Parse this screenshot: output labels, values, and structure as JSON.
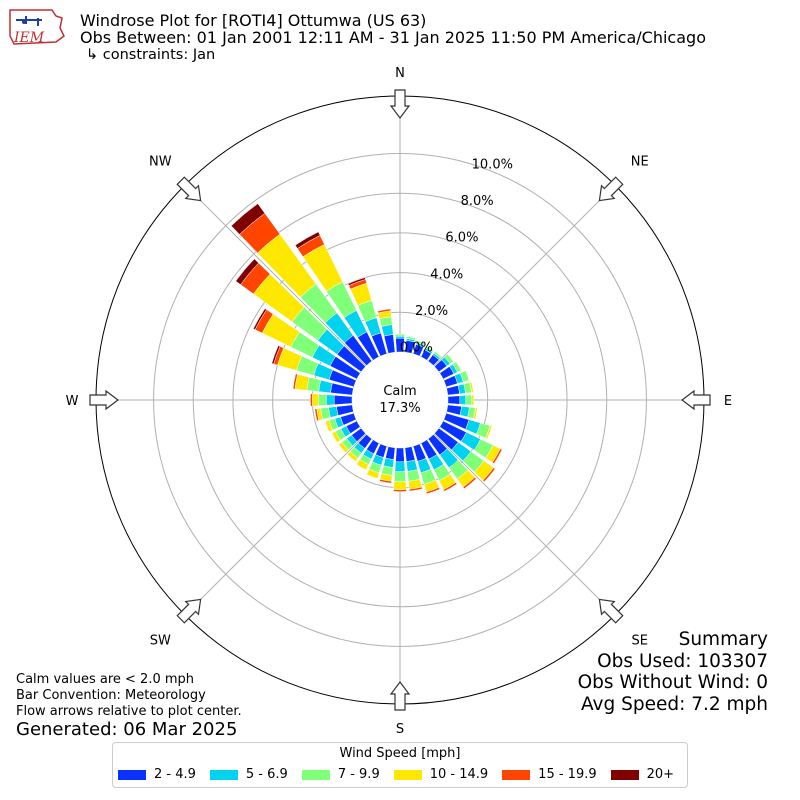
{
  "header": {
    "title_line1": "Windrose Plot for [ROTI4] Ottumwa (US 63)",
    "title_line2": "Obs Between: 01 Jan 2001 12:11 AM - 31 Jan 2025 11:50 PM America/Chicago",
    "title_line3": "↳ constraints: Jan",
    "logo_text": "IEM"
  },
  "notes": {
    "calm_note": "Calm values are < 2.0 mph",
    "bar_convention": "Bar Convention: Meteorology",
    "flow_arrows": "Flow arrows relative to plot center.",
    "generated": "Generated: 06 Mar 2025"
  },
  "summary": {
    "title": "Summary",
    "obs_used": "Obs Used: 103307",
    "obs_without_wind": "Obs Without Wind: 0",
    "avg_speed": "Avg Speed: 7.2 mph"
  },
  "center": {
    "label": "Calm",
    "value": "17.3%"
  },
  "legend": {
    "title": "Wind Speed [mph]",
    "items": [
      {
        "label": "2 - 4.9",
        "color": "#0a32ff"
      },
      {
        "label": "5 - 6.9",
        "color": "#00d2f0"
      },
      {
        "label": "7 - 9.9",
        "color": "#80ff78"
      },
      {
        "label": "10 - 14.9",
        "color": "#ffe800"
      },
      {
        "label": "15 - 19.9",
        "color": "#ff4500"
      },
      {
        "label": "20+",
        "color": "#800000"
      }
    ]
  },
  "chart_data": {
    "type": "windrose",
    "calm_percent": 17.3,
    "radial_ticks": [
      0,
      2,
      4,
      6,
      8,
      10
    ],
    "radial_tick_labels": [
      "0.0%",
      "2.0%",
      "4.0%",
      "6.0%",
      "8.0%",
      "10.0%"
    ],
    "rmax": 12.9,
    "compass_labels": [
      "N",
      "NE",
      "E",
      "SE",
      "S",
      "SW",
      "W",
      "NW"
    ],
    "series": [
      {
        "name": "2 - 4.9",
        "color": "#0a32ff"
      },
      {
        "name": "5 - 6.9",
        "color": "#00d2f0"
      },
      {
        "name": "7 - 9.9",
        "color": "#80ff78"
      },
      {
        "name": "10 - 14.9",
        "color": "#ffe800"
      },
      {
        "name": "15 - 19.9",
        "color": "#ff4500"
      },
      {
        "name": "20+",
        "color": "#800000"
      }
    ],
    "directions": [
      {
        "deg": 0,
        "values": [
          0.7,
          0.1,
          0.1,
          0.0,
          0.0,
          0.0
        ]
      },
      {
        "deg": 10,
        "values": [
          0.6,
          0.1,
          0.1,
          0.0,
          0.0,
          0.0
        ]
      },
      {
        "deg": 20,
        "values": [
          0.5,
          0.1,
          0.1,
          0.0,
          0.0,
          0.0
        ]
      },
      {
        "deg": 30,
        "values": [
          0.4,
          0.1,
          0.1,
          0.0,
          0.0,
          0.0
        ]
      },
      {
        "deg": 40,
        "values": [
          0.4,
          0.1,
          0.1,
          0.0,
          0.0,
          0.0
        ]
      },
      {
        "deg": 50,
        "values": [
          0.5,
          0.2,
          0.2,
          0.0,
          0.0,
          0.0
        ]
      },
      {
        "deg": 60,
        "values": [
          0.6,
          0.2,
          0.2,
          0.0,
          0.0,
          0.0
        ]
      },
      {
        "deg": 70,
        "values": [
          0.6,
          0.3,
          0.3,
          0.0,
          0.0,
          0.0
        ]
      },
      {
        "deg": 80,
        "values": [
          0.6,
          0.3,
          0.3,
          0.1,
          0.0,
          0.0
        ]
      },
      {
        "deg": 90,
        "values": [
          0.6,
          0.3,
          0.3,
          0.1,
          0.0,
          0.0
        ]
      },
      {
        "deg": 100,
        "values": [
          0.7,
          0.4,
          0.3,
          0.1,
          0.0,
          0.0
        ]
      },
      {
        "deg": 110,
        "values": [
          1.2,
          0.6,
          0.5,
          0.1,
          0.0,
          0.0
        ]
      },
      {
        "deg": 120,
        "values": [
          1.3,
          0.8,
          0.7,
          0.4,
          0.1,
          0.0
        ]
      },
      {
        "deg": 130,
        "values": [
          1.2,
          0.8,
          0.8,
          0.6,
          0.1,
          0.0
        ]
      },
      {
        "deg": 140,
        "values": [
          1.0,
          0.8,
          0.7,
          0.5,
          0.1,
          0.0
        ]
      },
      {
        "deg": 150,
        "values": [
          0.9,
          0.6,
          0.6,
          0.5,
          0.1,
          0.0
        ]
      },
      {
        "deg": 160,
        "values": [
          0.8,
          0.6,
          0.6,
          0.4,
          0.1,
          0.0
        ]
      },
      {
        "deg": 170,
        "values": [
          0.7,
          0.5,
          0.5,
          0.4,
          0.1,
          0.0
        ]
      },
      {
        "deg": 180,
        "values": [
          0.7,
          0.5,
          0.5,
          0.4,
          0.1,
          0.0
        ]
      },
      {
        "deg": 190,
        "values": [
          0.6,
          0.4,
          0.4,
          0.3,
          0.1,
          0.0
        ]
      },
      {
        "deg": 200,
        "values": [
          0.6,
          0.4,
          0.4,
          0.3,
          0.0,
          0.0
        ]
      },
      {
        "deg": 210,
        "values": [
          0.6,
          0.3,
          0.3,
          0.3,
          0.0,
          0.0
        ]
      },
      {
        "deg": 220,
        "values": [
          0.6,
          0.3,
          0.3,
          0.2,
          0.0,
          0.0
        ]
      },
      {
        "deg": 230,
        "values": [
          0.6,
          0.3,
          0.3,
          0.2,
          0.0,
          0.0
        ]
      },
      {
        "deg": 240,
        "values": [
          0.6,
          0.3,
          0.3,
          0.2,
          0.0,
          0.0
        ]
      },
      {
        "deg": 250,
        "values": [
          0.7,
          0.3,
          0.3,
          0.2,
          0.0,
          0.0
        ]
      },
      {
        "deg": 260,
        "values": [
          0.8,
          0.4,
          0.4,
          0.2,
          0.1,
          0.0
        ]
      },
      {
        "deg": 270,
        "values": [
          0.9,
          0.4,
          0.4,
          0.3,
          0.1,
          0.0
        ]
      },
      {
        "deg": 280,
        "values": [
          1.1,
          0.6,
          0.6,
          0.6,
          0.1,
          0.0
        ]
      },
      {
        "deg": 290,
        "values": [
          1.3,
          0.8,
          0.9,
          1.0,
          0.2,
          0.1
        ]
      },
      {
        "deg": 300,
        "values": [
          1.5,
          1.0,
          1.2,
          1.6,
          0.4,
          0.1
        ]
      },
      {
        "deg": 310,
        "values": [
          1.5,
          1.2,
          1.6,
          2.4,
          0.8,
          0.3
        ]
      },
      {
        "deg": 320,
        "values": [
          1.6,
          1.4,
          1.8,
          3.1,
          1.3,
          0.6
        ]
      },
      {
        "deg": 330,
        "values": [
          1.4,
          1.2,
          1.6,
          2.1,
          0.5,
          0.2
        ]
      },
      {
        "deg": 340,
        "values": [
          1.1,
          0.8,
          0.9,
          0.9,
          0.2,
          0.1
        ]
      },
      {
        "deg": 350,
        "values": [
          0.9,
          0.5,
          0.4,
          0.3,
          0.1,
          0.0
        ]
      }
    ]
  }
}
